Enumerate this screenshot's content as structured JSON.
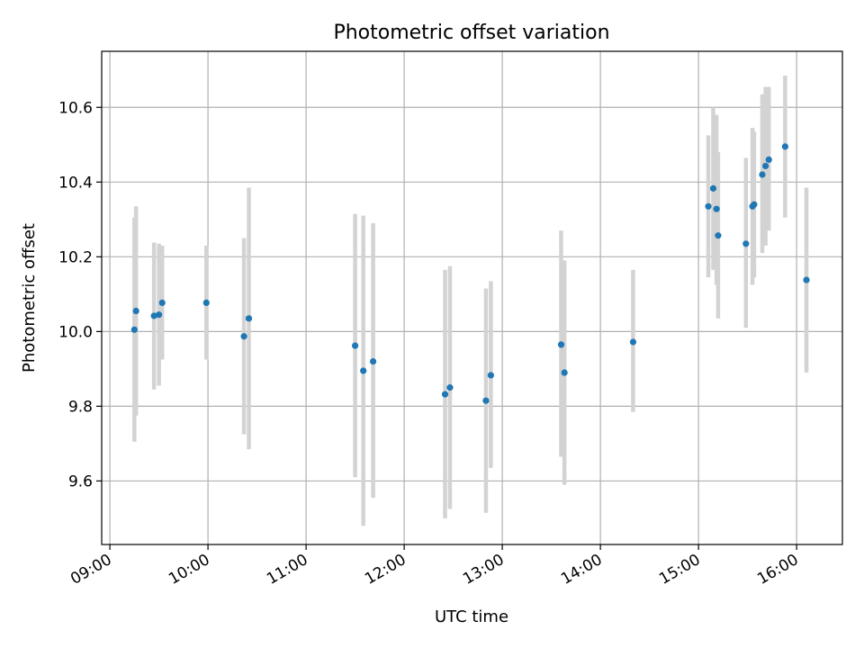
{
  "chart_data": {
    "type": "scatter",
    "title": "Photometric offset variation",
    "xlabel": "UTC time",
    "ylabel": "Photometric offset",
    "x_axis_type": "time",
    "xlim": [
      "08:55",
      "16:28"
    ],
    "ylim": [
      9.43,
      10.75
    ],
    "xticks": [
      "09:00",
      "10:00",
      "11:00",
      "12:00",
      "13:00",
      "14:00",
      "15:00",
      "16:00"
    ],
    "yticks": [
      9.6,
      9.8,
      10.0,
      10.2,
      10.4,
      10.6
    ],
    "grid": true,
    "colors": {
      "points": "#1f77b4",
      "error_bars": "#d3d3d3"
    },
    "points": [
      {
        "x": "09:15",
        "y": 10.005,
        "y_low": 9.705,
        "y_high": 10.305
      },
      {
        "x": "09:16",
        "y": 10.055,
        "y_low": 9.775,
        "y_high": 10.335
      },
      {
        "x": "09:27",
        "y": 10.042,
        "y_low": 9.845,
        "y_high": 10.238
      },
      {
        "x": "09:30",
        "y": 10.045,
        "y_low": 9.855,
        "y_high": 10.235
      },
      {
        "x": "09:32",
        "y": 10.077,
        "y_low": 9.925,
        "y_high": 10.23
      },
      {
        "x": "09:59",
        "y": 10.077,
        "y_low": 9.925,
        "y_high": 10.23
      },
      {
        "x": "10:22",
        "y": 9.987,
        "y_low": 9.725,
        "y_high": 10.25
      },
      {
        "x": "10:25",
        "y": 10.035,
        "y_low": 9.685,
        "y_high": 10.385
      },
      {
        "x": "11:30",
        "y": 9.962,
        "y_low": 9.61,
        "y_high": 10.315
      },
      {
        "x": "11:35",
        "y": 9.895,
        "y_low": 9.48,
        "y_high": 10.31
      },
      {
        "x": "11:41",
        "y": 9.92,
        "y_low": 9.555,
        "y_high": 10.29
      },
      {
        "x": "12:25",
        "y": 9.832,
        "y_low": 9.5,
        "y_high": 10.165
      },
      {
        "x": "12:28",
        "y": 9.85,
        "y_low": 9.525,
        "y_high": 10.175
      },
      {
        "x": "12:50",
        "y": 9.815,
        "y_low": 9.515,
        "y_high": 10.115
      },
      {
        "x": "12:53",
        "y": 9.883,
        "y_low": 9.635,
        "y_high": 10.135
      },
      {
        "x": "13:36",
        "y": 9.965,
        "y_low": 9.665,
        "y_high": 10.27
      },
      {
        "x": "13:38",
        "y": 9.89,
        "y_low": 9.59,
        "y_high": 10.19
      },
      {
        "x": "14:20",
        "y": 9.972,
        "y_low": 9.785,
        "y_high": 10.165
      },
      {
        "x": "15:06",
        "y": 10.335,
        "y_low": 10.145,
        "y_high": 10.525
      },
      {
        "x": "15:09",
        "y": 10.383,
        "y_low": 10.165,
        "y_high": 10.6
      },
      {
        "x": "15:11",
        "y": 10.328,
        "y_low": 10.125,
        "y_high": 10.58
      },
      {
        "x": "15:12",
        "y": 10.257,
        "y_low": 10.035,
        "y_high": 10.48
      },
      {
        "x": "15:29",
        "y": 10.235,
        "y_low": 10.01,
        "y_high": 10.465
      },
      {
        "x": "15:33",
        "y": 10.335,
        "y_low": 10.125,
        "y_high": 10.545
      },
      {
        "x": "15:34",
        "y": 10.34,
        "y_low": 10.145,
        "y_high": 10.535
      },
      {
        "x": "15:39",
        "y": 10.42,
        "y_low": 10.21,
        "y_high": 10.635
      },
      {
        "x": "15:41",
        "y": 10.443,
        "y_low": 10.23,
        "y_high": 10.655
      },
      {
        "x": "15:43",
        "y": 10.46,
        "y_low": 10.27,
        "y_high": 10.655
      },
      {
        "x": "15:53",
        "y": 10.495,
        "y_low": 10.305,
        "y_high": 10.685
      },
      {
        "x": "16:06",
        "y": 10.138,
        "y_low": 9.89,
        "y_high": 10.385
      }
    ]
  }
}
